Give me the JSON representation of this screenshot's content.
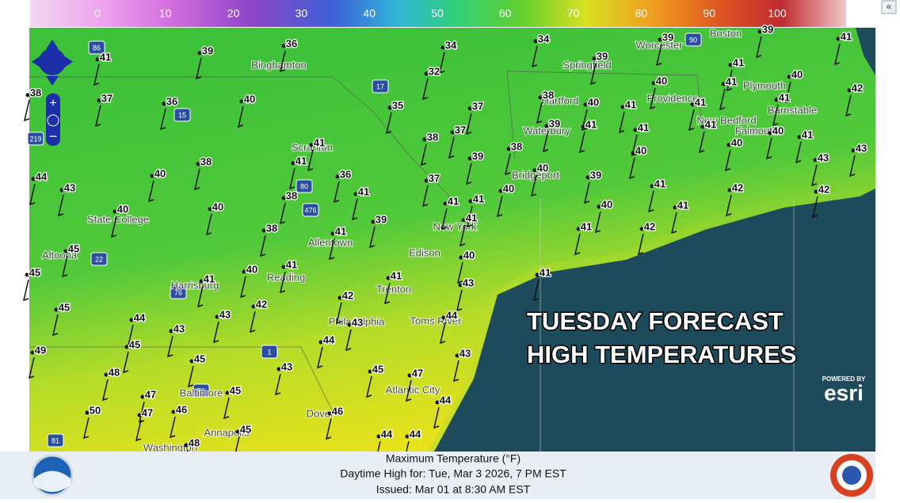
{
  "color_scale": {
    "labels": [
      "0",
      "10",
      "20",
      "30",
      "40",
      "50",
      "60",
      "70",
      "80",
      "90",
      "100"
    ]
  },
  "overlay": {
    "line1": "TUESDAY FORECAST",
    "line2": "HIGH TEMPERATURES"
  },
  "attribution": {
    "powered_by": "POWERED BY",
    "brand": "esri"
  },
  "footer": {
    "title": "Maximum Temperature (°F)",
    "valid": "Daytime High for: Tue, Mar  3 2026,   7 PM EST",
    "issued": "Issued: Mar 01 at 8:30 AM EST"
  },
  "cities": [
    "Binghamton",
    "Springfield",
    "Worcester",
    "Boston",
    "Plymouth",
    "Providence",
    "Hartford",
    "Waterbury",
    "New Bedford",
    "Barnstable",
    "Falmouth",
    "Scranton",
    "Bridgeport",
    "State College",
    "New York",
    "Allentown",
    "Edison",
    "Altoona",
    "Harrisburg",
    "Reading",
    "Trenton",
    "Philadelphia",
    "Toms River",
    "Baltimore",
    "Atlantic City",
    "Dover",
    "Annapolis",
    "Washington"
  ],
  "highways": [
    "86",
    "17",
    "15",
    "219",
    "80",
    "476",
    "22",
    "76",
    "1",
    "70",
    "81",
    "90"
  ],
  "temperatures": [
    41,
    39,
    36,
    34,
    34,
    39,
    39,
    41,
    32,
    39,
    41,
    40,
    41,
    42,
    37,
    36,
    40,
    35,
    37,
    38,
    40,
    41,
    40,
    41,
    41,
    38,
    39,
    41,
    41,
    41,
    40,
    41,
    41,
    38,
    37,
    38,
    40,
    40,
    43,
    44,
    40,
    38,
    41,
    36,
    39,
    41,
    37,
    40,
    39,
    43,
    43,
    40,
    38,
    40,
    41,
    41,
    40,
    41,
    42,
    42,
    41,
    39,
    40,
    41,
    41,
    42,
    38,
    41,
    45,
    40,
    45,
    41,
    40,
    41,
    41,
    43,
    41,
    45,
    42,
    42,
    44,
    43,
    43,
    44,
    43,
    44,
    45,
    49,
    45,
    43,
    45,
    43,
    47,
    48,
    47,
    45,
    44,
    50,
    47,
    46,
    46,
    45,
    44,
    44,
    48
  ]
}
